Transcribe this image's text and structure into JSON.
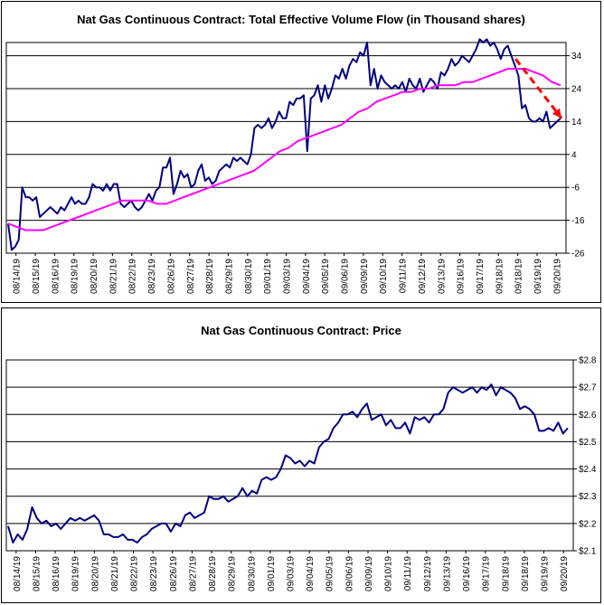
{
  "chart_data": [
    {
      "type": "line",
      "title": "Nat Gas Continuous Contract: Total Effective Volume Flow (in Thousand shares)",
      "x_tick_labels": [
        "08/14/19",
        "08/15/19",
        "08/16/19",
        "08/19/19",
        "08/20/19",
        "08/21/19",
        "08/22/19",
        "08/23/19",
        "08/26/19",
        "08/27/19",
        "08/28/19",
        "08/29/19",
        "08/30/19",
        "09/01/19",
        "09/03/19",
        "09/04/19",
        "09/05/19",
        "09/06/19",
        "09/09/19",
        "09/10/19",
        "09/11/19",
        "09/12/19",
        "09/13/19",
        "09/16/19",
        "09/17/19",
        "09/18/19",
        "09/18/19",
        "09/19/19",
        "09/20/19"
      ],
      "y_ticks": [
        -26,
        -16,
        -6,
        4,
        14,
        24,
        34
      ],
      "ylim": [
        -26,
        38
      ],
      "axis_position": "right",
      "grid": true,
      "series": [
        {
          "color": "#000080",
          "style": "solid",
          "values": [
            -17,
            -25,
            -24,
            -22,
            -6,
            -9,
            -9,
            -10,
            -9,
            -15,
            -14,
            -13,
            -12,
            -13,
            -14,
            -12,
            -13,
            -11,
            -9,
            -11,
            -10,
            -11,
            -11,
            -9,
            -5,
            -6,
            -6,
            -7,
            -5,
            -7,
            -5,
            -5,
            -11,
            -12,
            -11,
            -10,
            -12,
            -13,
            -12,
            -10,
            -8,
            -10,
            -7,
            -6,
            0,
            0,
            3,
            -8,
            -5,
            -1,
            -3,
            -2,
            -6,
            -5,
            -1,
            1,
            -4,
            -3,
            -5,
            -4,
            -1,
            0,
            1,
            0,
            3,
            2,
            3,
            2,
            1,
            4,
            12,
            13,
            12,
            13,
            15,
            12,
            14,
            17,
            15,
            15,
            20,
            19,
            21,
            21,
            22,
            5,
            21,
            22,
            25,
            20,
            25,
            21,
            24,
            28,
            27,
            30,
            27,
            31,
            33,
            32,
            35,
            34,
            38,
            25,
            30,
            24,
            28,
            26,
            25,
            24,
            25,
            24,
            26,
            23,
            27,
            25,
            24,
            27,
            23,
            25,
            27,
            26,
            24,
            29,
            28,
            30,
            33,
            31,
            32,
            34,
            33,
            32,
            34,
            36,
            39,
            38,
            39,
            37,
            38,
            36,
            33,
            36,
            37,
            34,
            31,
            28,
            18,
            19,
            15,
            14,
            14,
            15,
            14,
            17,
            12,
            13,
            14,
            15
          ]
        },
        {
          "color": "#ff00ff",
          "style": "solid",
          "values": [
            -17,
            -18,
            -19,
            -19,
            -19,
            -18,
            -17,
            -16,
            -15,
            -14,
            -13,
            -12,
            -11,
            -10,
            -10,
            -10,
            -10,
            -11,
            -11,
            -10,
            -9,
            -8,
            -7,
            -6,
            -5,
            -4,
            -3,
            -2,
            -1,
            1,
            3,
            5,
            6,
            8,
            9,
            10,
            11,
            12,
            13,
            15,
            17,
            18,
            20,
            21,
            22,
            23,
            23,
            24,
            24,
            25,
            25,
            25,
            26,
            26,
            27,
            28,
            29,
            30,
            30,
            30,
            29,
            28,
            26,
            25
          ]
        },
        {
          "color": "#ff0000",
          "style": "dashed",
          "values": [
            33,
            15
          ]
        }
      ]
    },
    {
      "type": "line",
      "title": "Nat Gas Continuous Contract: Price",
      "x_tick_labels": [
        "08/14/19",
        "08/15/19",
        "08/16/19",
        "08/19/19",
        "08/20/19",
        "08/21/19",
        "08/22/19",
        "08/23/19",
        "08/26/19",
        "08/27/19",
        "08/28/19",
        "08/29/19",
        "08/30/19",
        "09/01/19",
        "09/03/19",
        "09/04/19",
        "09/05/19",
        "09/06/19",
        "09/09/19",
        "09/10/19",
        "09/11/19",
        "09/12/19",
        "09/13/19",
        "09/16/19",
        "09/17/19",
        "09/18/19",
        "09/18/19",
        "09/19/19",
        "09/20/19"
      ],
      "y_tick_labels": [
        "$2.1",
        "$2.2",
        "$2.3",
        "$2.4",
        "$2.5",
        "$2.6",
        "$2.7",
        "$2.8"
      ],
      "y_ticks": [
        2.1,
        2.2,
        2.3,
        2.4,
        2.5,
        2.6,
        2.7,
        2.8
      ],
      "ylim": [
        2.1,
        2.8
      ],
      "axis_position": "right",
      "grid": true,
      "series": [
        {
          "color": "#000080",
          "style": "solid",
          "values": [
            2.19,
            2.13,
            2.16,
            2.14,
            2.18,
            2.26,
            2.22,
            2.2,
            2.21,
            2.19,
            2.2,
            2.18,
            2.2,
            2.22,
            2.21,
            2.22,
            2.21,
            2.22,
            2.23,
            2.21,
            2.16,
            2.16,
            2.15,
            2.15,
            2.16,
            2.14,
            2.14,
            2.13,
            2.15,
            2.16,
            2.18,
            2.19,
            2.2,
            2.2,
            2.17,
            2.2,
            2.19,
            2.23,
            2.24,
            2.22,
            2.23,
            2.24,
            2.3,
            2.29,
            2.29,
            2.3,
            2.28,
            2.29,
            2.3,
            2.33,
            2.3,
            2.32,
            2.31,
            2.36,
            2.37,
            2.36,
            2.37,
            2.4,
            2.45,
            2.44,
            2.42,
            2.43,
            2.41,
            2.43,
            2.42,
            2.48,
            2.5,
            2.51,
            2.55,
            2.57,
            2.6,
            2.6,
            2.61,
            2.59,
            2.62,
            2.64,
            2.58,
            2.59,
            2.6,
            2.56,
            2.58,
            2.55,
            2.55,
            2.57,
            2.53,
            2.59,
            2.58,
            2.59,
            2.57,
            2.6,
            2.6,
            2.62,
            2.68,
            2.7,
            2.69,
            2.68,
            2.69,
            2.7,
            2.68,
            2.7,
            2.69,
            2.71,
            2.67,
            2.7,
            2.69,
            2.68,
            2.66,
            2.62,
            2.63,
            2.62,
            2.6,
            2.54,
            2.54,
            2.55,
            2.54,
            2.57,
            2.53,
            2.55
          ]
        }
      ]
    }
  ]
}
